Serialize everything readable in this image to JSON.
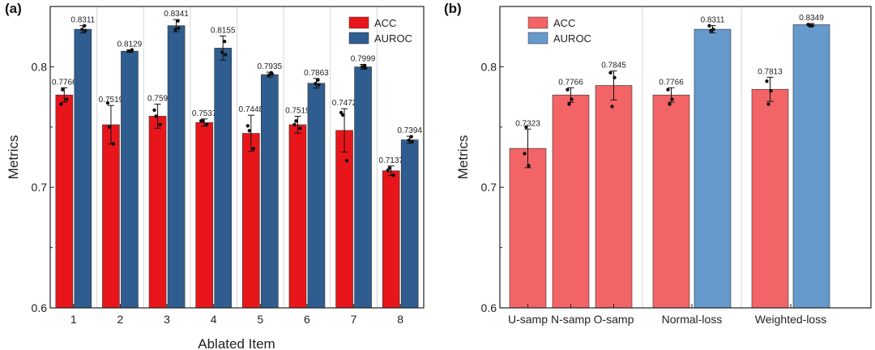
{
  "chart_data": [
    {
      "panel_label": "(a)",
      "type": "bar",
      "xlabel": "Ablated Item",
      "ylabel": "Metrics",
      "ylim": [
        0.6,
        0.85
      ],
      "yticks": [
        "0.6",
        "0.7",
        "0.8"
      ],
      "categories": [
        "1",
        "2",
        "3",
        "4",
        "5",
        "6",
        "7",
        "8"
      ],
      "legend": "top-right",
      "series": [
        {
          "name": "ACC",
          "color": "#e8161b",
          "values": [
            0.7766,
            0.7519,
            0.759,
            0.7537,
            0.7448,
            0.7519,
            0.7472,
            0.7137
          ],
          "labels": [
            "0.7766",
            "0.7519",
            "0.759",
            "0.7537",
            "0.7448",
            "0.7519",
            "0.7472",
            "0.7137"
          ],
          "errors": [
            0.006,
            0.016,
            0.01,
            0.003,
            0.015,
            0.007,
            0.018,
            0.004
          ],
          "points": [
            [
              0.781,
              0.773,
              0.769
            ],
            [
              0.75,
              0.736,
              0.77
            ],
            [
              0.759,
              0.752,
              0.764
            ],
            [
              0.755,
              0.752,
              0.755
            ],
            [
              0.747,
              0.732,
              0.751
            ],
            [
              0.755,
              0.749,
              0.752
            ],
            [
              0.76,
              0.722,
              0.762
            ],
            [
              0.716,
              0.71,
              0.714
            ]
          ]
        },
        {
          "name": "AUROC",
          "color": "#2f5d8f",
          "values": [
            0.8311,
            0.8129,
            0.8341,
            0.8155,
            0.7935,
            0.7863,
            0.7999,
            0.7394
          ],
          "labels": [
            "0.8311",
            "0.8129",
            "0.8341",
            "0.8155",
            "0.7935",
            "0.7863",
            "0.7999",
            "0.7394"
          ],
          "errors": [
            0.003,
            0.001,
            0.005,
            0.01,
            0.002,
            0.004,
            0.002,
            0.003
          ],
          "points": [
            [
              0.834,
              0.831,
              0.83
            ],
            [
              0.813,
              0.813,
              0.814
            ],
            [
              0.838,
              0.831,
              0.832
            ],
            [
              0.821,
              0.812,
              0.81
            ],
            [
              0.795,
              0.793,
              0.794
            ],
            [
              0.789,
              0.786,
              0.785
            ],
            [
              0.801,
              0.8,
              0.799
            ],
            [
              0.742,
              0.739,
              0.738
            ]
          ]
        }
      ]
    },
    {
      "panel_label": "(b)",
      "type": "bar",
      "xlabel": "",
      "ylabel": "Metrics",
      "ylim": [
        0.6,
        0.85
      ],
      "yticks": [
        "0.6",
        "0.7",
        "0.8"
      ],
      "groups": [
        {
          "label": "U-samp",
          "bars": [
            {
              "series": "ACC",
              "value": 0.7323,
              "label": "0.7323",
              "err": 0.016,
              "points": [
                0.728,
                0.718,
                0.75
              ]
            }
          ]
        },
        {
          "label": "N-samp",
          "bars": [
            {
              "series": "ACC",
              "value": 0.7766,
              "label": "0.7766",
              "err": 0.006,
              "points": [
                0.781,
                0.773,
                0.769
              ]
            }
          ]
        },
        {
          "label": "O-samp",
          "bars": [
            {
              "series": "ACC",
              "value": 0.7845,
              "label": "0.7845",
              "err": 0.012,
              "points": [
                0.795,
                0.791,
                0.767
              ]
            }
          ]
        },
        {
          "label": "Normal-loss",
          "bars": [
            {
              "series": "ACC",
              "value": 0.7766,
              "label": "0.7766",
              "err": 0.006,
              "points": [
                0.781,
                0.773,
                0.769
              ]
            },
            {
              "series": "AUROC",
              "value": 0.8311,
              "label": "0.8311",
              "err": 0.003,
              "points": [
                0.834,
                0.831,
                0.83
              ]
            }
          ]
        },
        {
          "label": "Weighted-loss",
          "bars": [
            {
              "series": "ACC",
              "value": 0.7813,
              "label": "0.7813",
              "err": 0.01,
              "points": [
                0.788,
                0.78,
                0.769
              ]
            },
            {
              "series": "AUROC",
              "value": 0.8349,
              "label": "0.8349",
              "err": 0.001,
              "points": [
                0.835,
                0.834,
                0.834
              ]
            }
          ]
        }
      ],
      "legend": "top-left",
      "series": [
        {
          "name": "ACC",
          "color": "#f26466"
        },
        {
          "name": "AUROC",
          "color": "#6699cc"
        }
      ]
    }
  ]
}
